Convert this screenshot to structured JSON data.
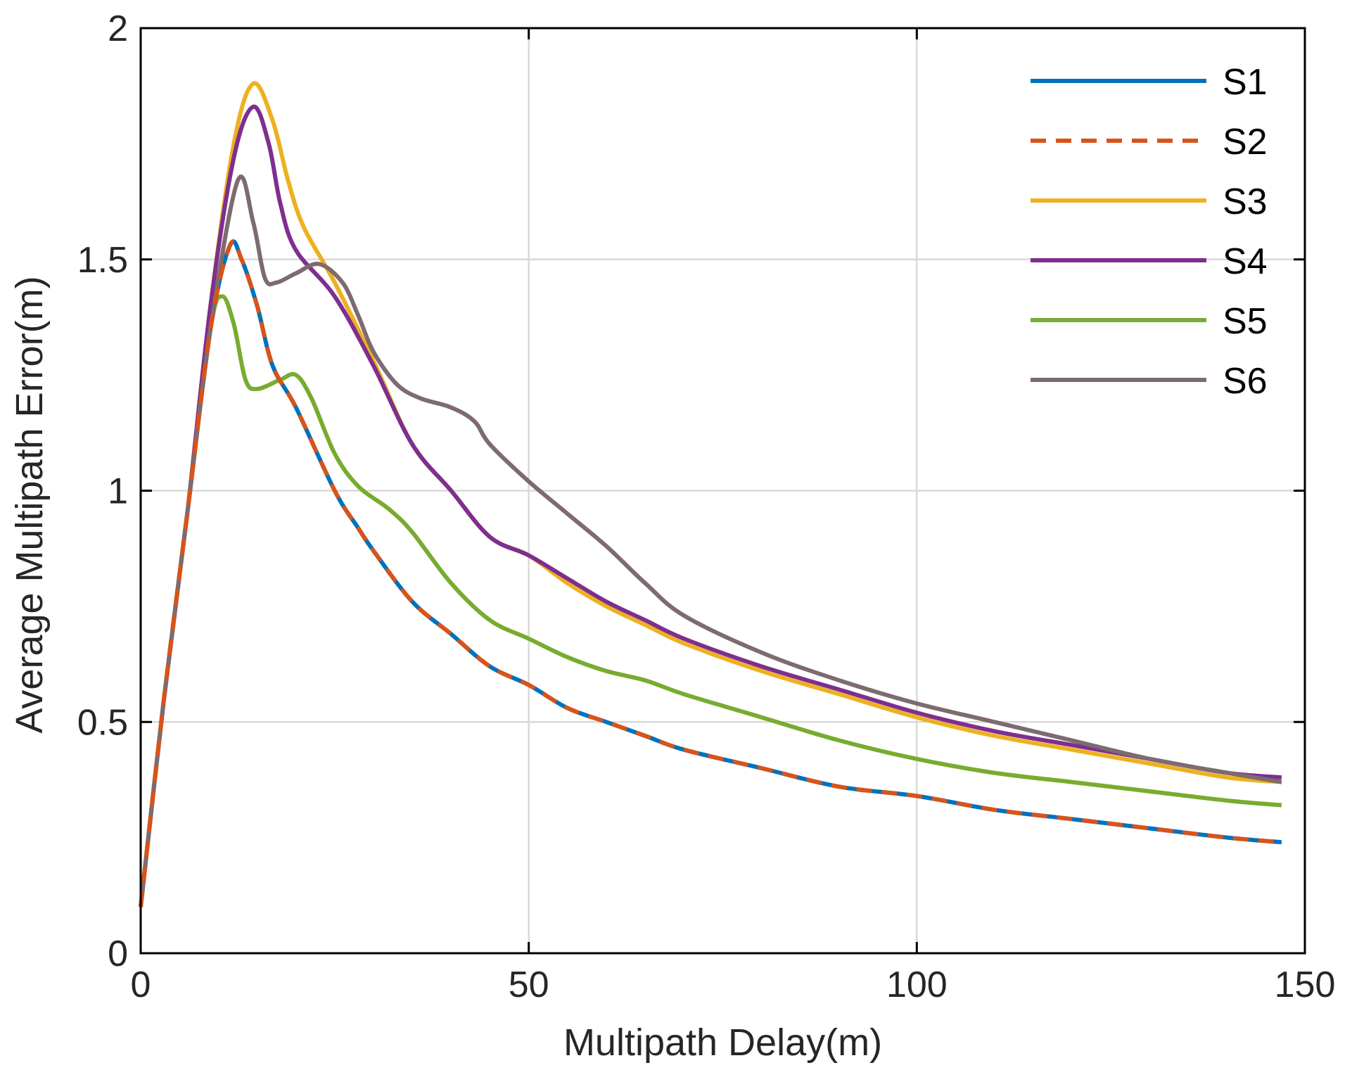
{
  "chart_data": {
    "type": "line",
    "title": "",
    "xlabel": "Multipath Delay(m)",
    "ylabel": "Average Multipath Error(m)",
    "xlim": [
      0,
      150
    ],
    "ylim": [
      0,
      2
    ],
    "xticks": [
      0,
      50,
      100,
      150
    ],
    "yticks": [
      0,
      0.5,
      1,
      1.5,
      2
    ],
    "xtick_labels": [
      "0",
      "50",
      "100",
      "150"
    ],
    "ytick_labels": [
      "0",
      "0.5",
      "1",
      "1.5",
      "2"
    ],
    "grid": true,
    "legend_position": "top-right",
    "series": [
      {
        "name": "S1",
        "color": "#0072BD",
        "style": "solid",
        "x": [
          0,
          3,
          6,
          9,
          11.5,
          13,
          15,
          17,
          20,
          25,
          28,
          30,
          35,
          40,
          45,
          50,
          55,
          60,
          65,
          70,
          80,
          90,
          100,
          110,
          120,
          130,
          140,
          147
        ],
        "y": [
          0.1,
          0.55,
          0.95,
          1.35,
          1.53,
          1.5,
          1.4,
          1.27,
          1.18,
          1.0,
          0.92,
          0.87,
          0.76,
          0.69,
          0.62,
          0.58,
          0.53,
          0.5,
          0.47,
          0.44,
          0.4,
          0.36,
          0.34,
          0.31,
          0.29,
          0.27,
          0.25,
          0.24
        ]
      },
      {
        "name": "S2",
        "color": "#D95319",
        "style": "dashed",
        "x": [
          0,
          3,
          6,
          9,
          11.5,
          13,
          15,
          17,
          20,
          25,
          28,
          30,
          35,
          40,
          45,
          50,
          55,
          60,
          65,
          70,
          80,
          90,
          100,
          110,
          120,
          130,
          140,
          147
        ],
        "y": [
          0.1,
          0.55,
          0.95,
          1.35,
          1.53,
          1.5,
          1.4,
          1.27,
          1.18,
          1.0,
          0.92,
          0.87,
          0.76,
          0.69,
          0.62,
          0.58,
          0.53,
          0.5,
          0.47,
          0.44,
          0.4,
          0.36,
          0.34,
          0.31,
          0.29,
          0.27,
          0.25,
          0.24
        ]
      },
      {
        "name": "S3",
        "color": "#EDB120",
        "style": "solid",
        "x": [
          0,
          3,
          6,
          9,
          12,
          14.5,
          17,
          19,
          21,
          25,
          30,
          35,
          40,
          45,
          50,
          55,
          60,
          65,
          70,
          80,
          90,
          100,
          110,
          120,
          130,
          140,
          147
        ],
        "y": [
          0.1,
          0.55,
          0.95,
          1.4,
          1.75,
          1.88,
          1.8,
          1.67,
          1.57,
          1.45,
          1.28,
          1.1,
          1.0,
          0.9,
          0.86,
          0.8,
          0.75,
          0.71,
          0.67,
          0.61,
          0.56,
          0.51,
          0.47,
          0.44,
          0.41,
          0.38,
          0.37
        ]
      },
      {
        "name": "S4",
        "color": "#7E2F8E",
        "style": "solid",
        "x": [
          0,
          3,
          6,
          9,
          12,
          14.5,
          16.5,
          18,
          20,
          25,
          30,
          35,
          40,
          45,
          50,
          55,
          60,
          65,
          70,
          80,
          90,
          100,
          110,
          120,
          130,
          140,
          147
        ],
        "y": [
          0.1,
          0.55,
          0.95,
          1.4,
          1.72,
          1.83,
          1.75,
          1.62,
          1.52,
          1.42,
          1.27,
          1.1,
          1.0,
          0.9,
          0.86,
          0.81,
          0.76,
          0.72,
          0.68,
          0.62,
          0.57,
          0.52,
          0.48,
          0.45,
          0.42,
          0.39,
          0.38
        ]
      },
      {
        "name": "S5",
        "color": "#77AC30",
        "style": "solid",
        "x": [
          0,
          3,
          6,
          9,
          10.5,
          12,
          13.5,
          15,
          18,
          20,
          22,
          25,
          28,
          32,
          35,
          40,
          45,
          50,
          55,
          60,
          65,
          70,
          80,
          90,
          100,
          110,
          120,
          130,
          140,
          147
        ],
        "y": [
          0.1,
          0.55,
          0.95,
          1.35,
          1.42,
          1.36,
          1.24,
          1.22,
          1.24,
          1.25,
          1.2,
          1.08,
          1.01,
          0.96,
          0.91,
          0.8,
          0.72,
          0.68,
          0.64,
          0.61,
          0.59,
          0.56,
          0.51,
          0.46,
          0.42,
          0.39,
          0.37,
          0.35,
          0.33,
          0.32
        ]
      },
      {
        "name": "S6",
        "color": "#7E6B6F",
        "style": "solid",
        "x": [
          0,
          3,
          6,
          9,
          12.5,
          14.5,
          16,
          17.5,
          20,
          23,
          26,
          28,
          30,
          33,
          36,
          40,
          43,
          45,
          50,
          55,
          60,
          65,
          70,
          80,
          90,
          100,
          110,
          120,
          130,
          140,
          147
        ],
        "y": [
          0.1,
          0.55,
          0.95,
          1.35,
          1.67,
          1.58,
          1.46,
          1.45,
          1.47,
          1.49,
          1.45,
          1.38,
          1.3,
          1.23,
          1.2,
          1.18,
          1.15,
          1.1,
          1.02,
          0.95,
          0.88,
          0.8,
          0.73,
          0.65,
          0.59,
          0.54,
          0.5,
          0.46,
          0.42,
          0.39,
          0.37
        ]
      }
    ]
  }
}
